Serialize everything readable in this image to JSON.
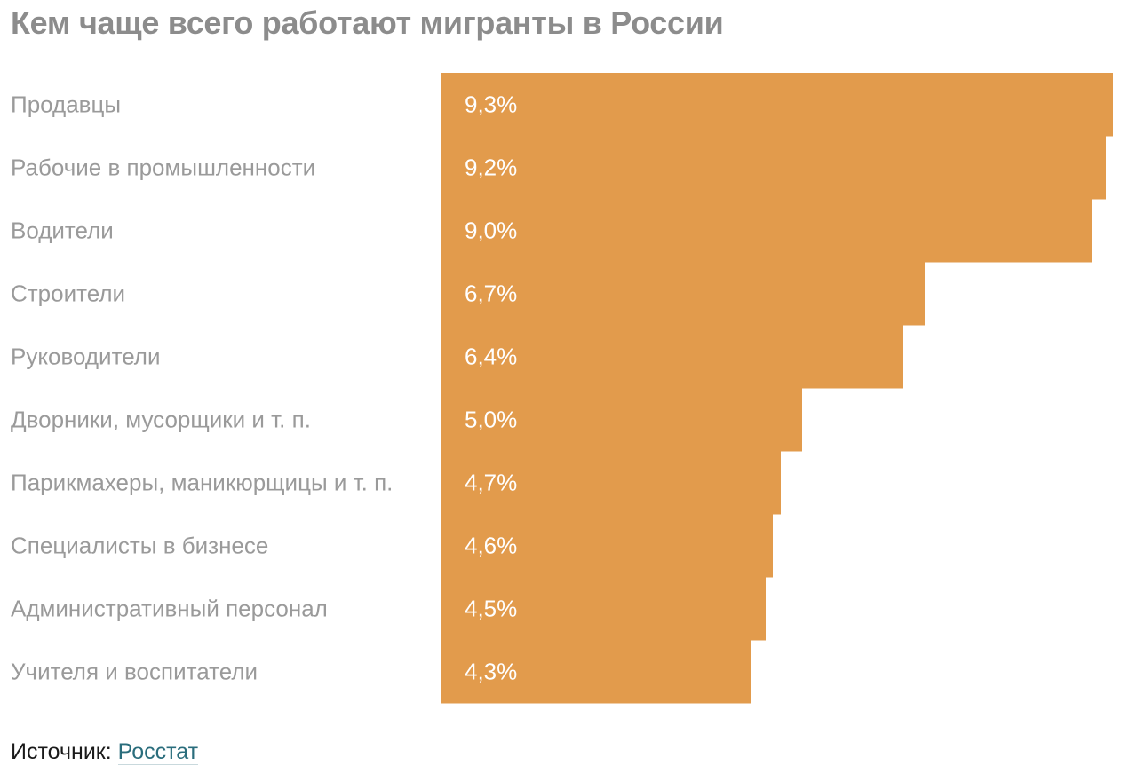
{
  "title": "Кем чаще всего работают мигранты в России",
  "source": {
    "prefix": "Источник: ",
    "link_text": "Росстат"
  },
  "colors": {
    "bar": "#e29b4c",
    "category_text": "#9a9a9a",
    "value_text": "#ffffff",
    "title_text": "#8c8c8c",
    "link": "#2a6d7c"
  },
  "chart_data": {
    "type": "bar",
    "orientation": "horizontal",
    "title": "Кем чаще всего работают мигранты в России",
    "xlabel": "",
    "ylabel": "",
    "unit": "%",
    "xlim": [
      0,
      9.3
    ],
    "grid": false,
    "legend": "none",
    "categories": [
      "Продавцы",
      "Рабочие в промышленности",
      "Водители",
      "Строители",
      "Руководители",
      "Дворники, мусорщики и т. п.",
      "Парикмахеры, маникюрщицы и т. п.",
      "Специалисты в бизнесе",
      "Административный персонал",
      "Учителя и воспитатели"
    ],
    "values": [
      9.3,
      9.2,
      9.0,
      6.7,
      6.4,
      5.0,
      4.7,
      4.6,
      4.5,
      4.3
    ],
    "value_labels": [
      "9,3%",
      "9,2%",
      "9,0%",
      "6,7%",
      "6,4%",
      "5,0%",
      "4,7%",
      "4,6%",
      "4,5%",
      "4,3%"
    ]
  }
}
